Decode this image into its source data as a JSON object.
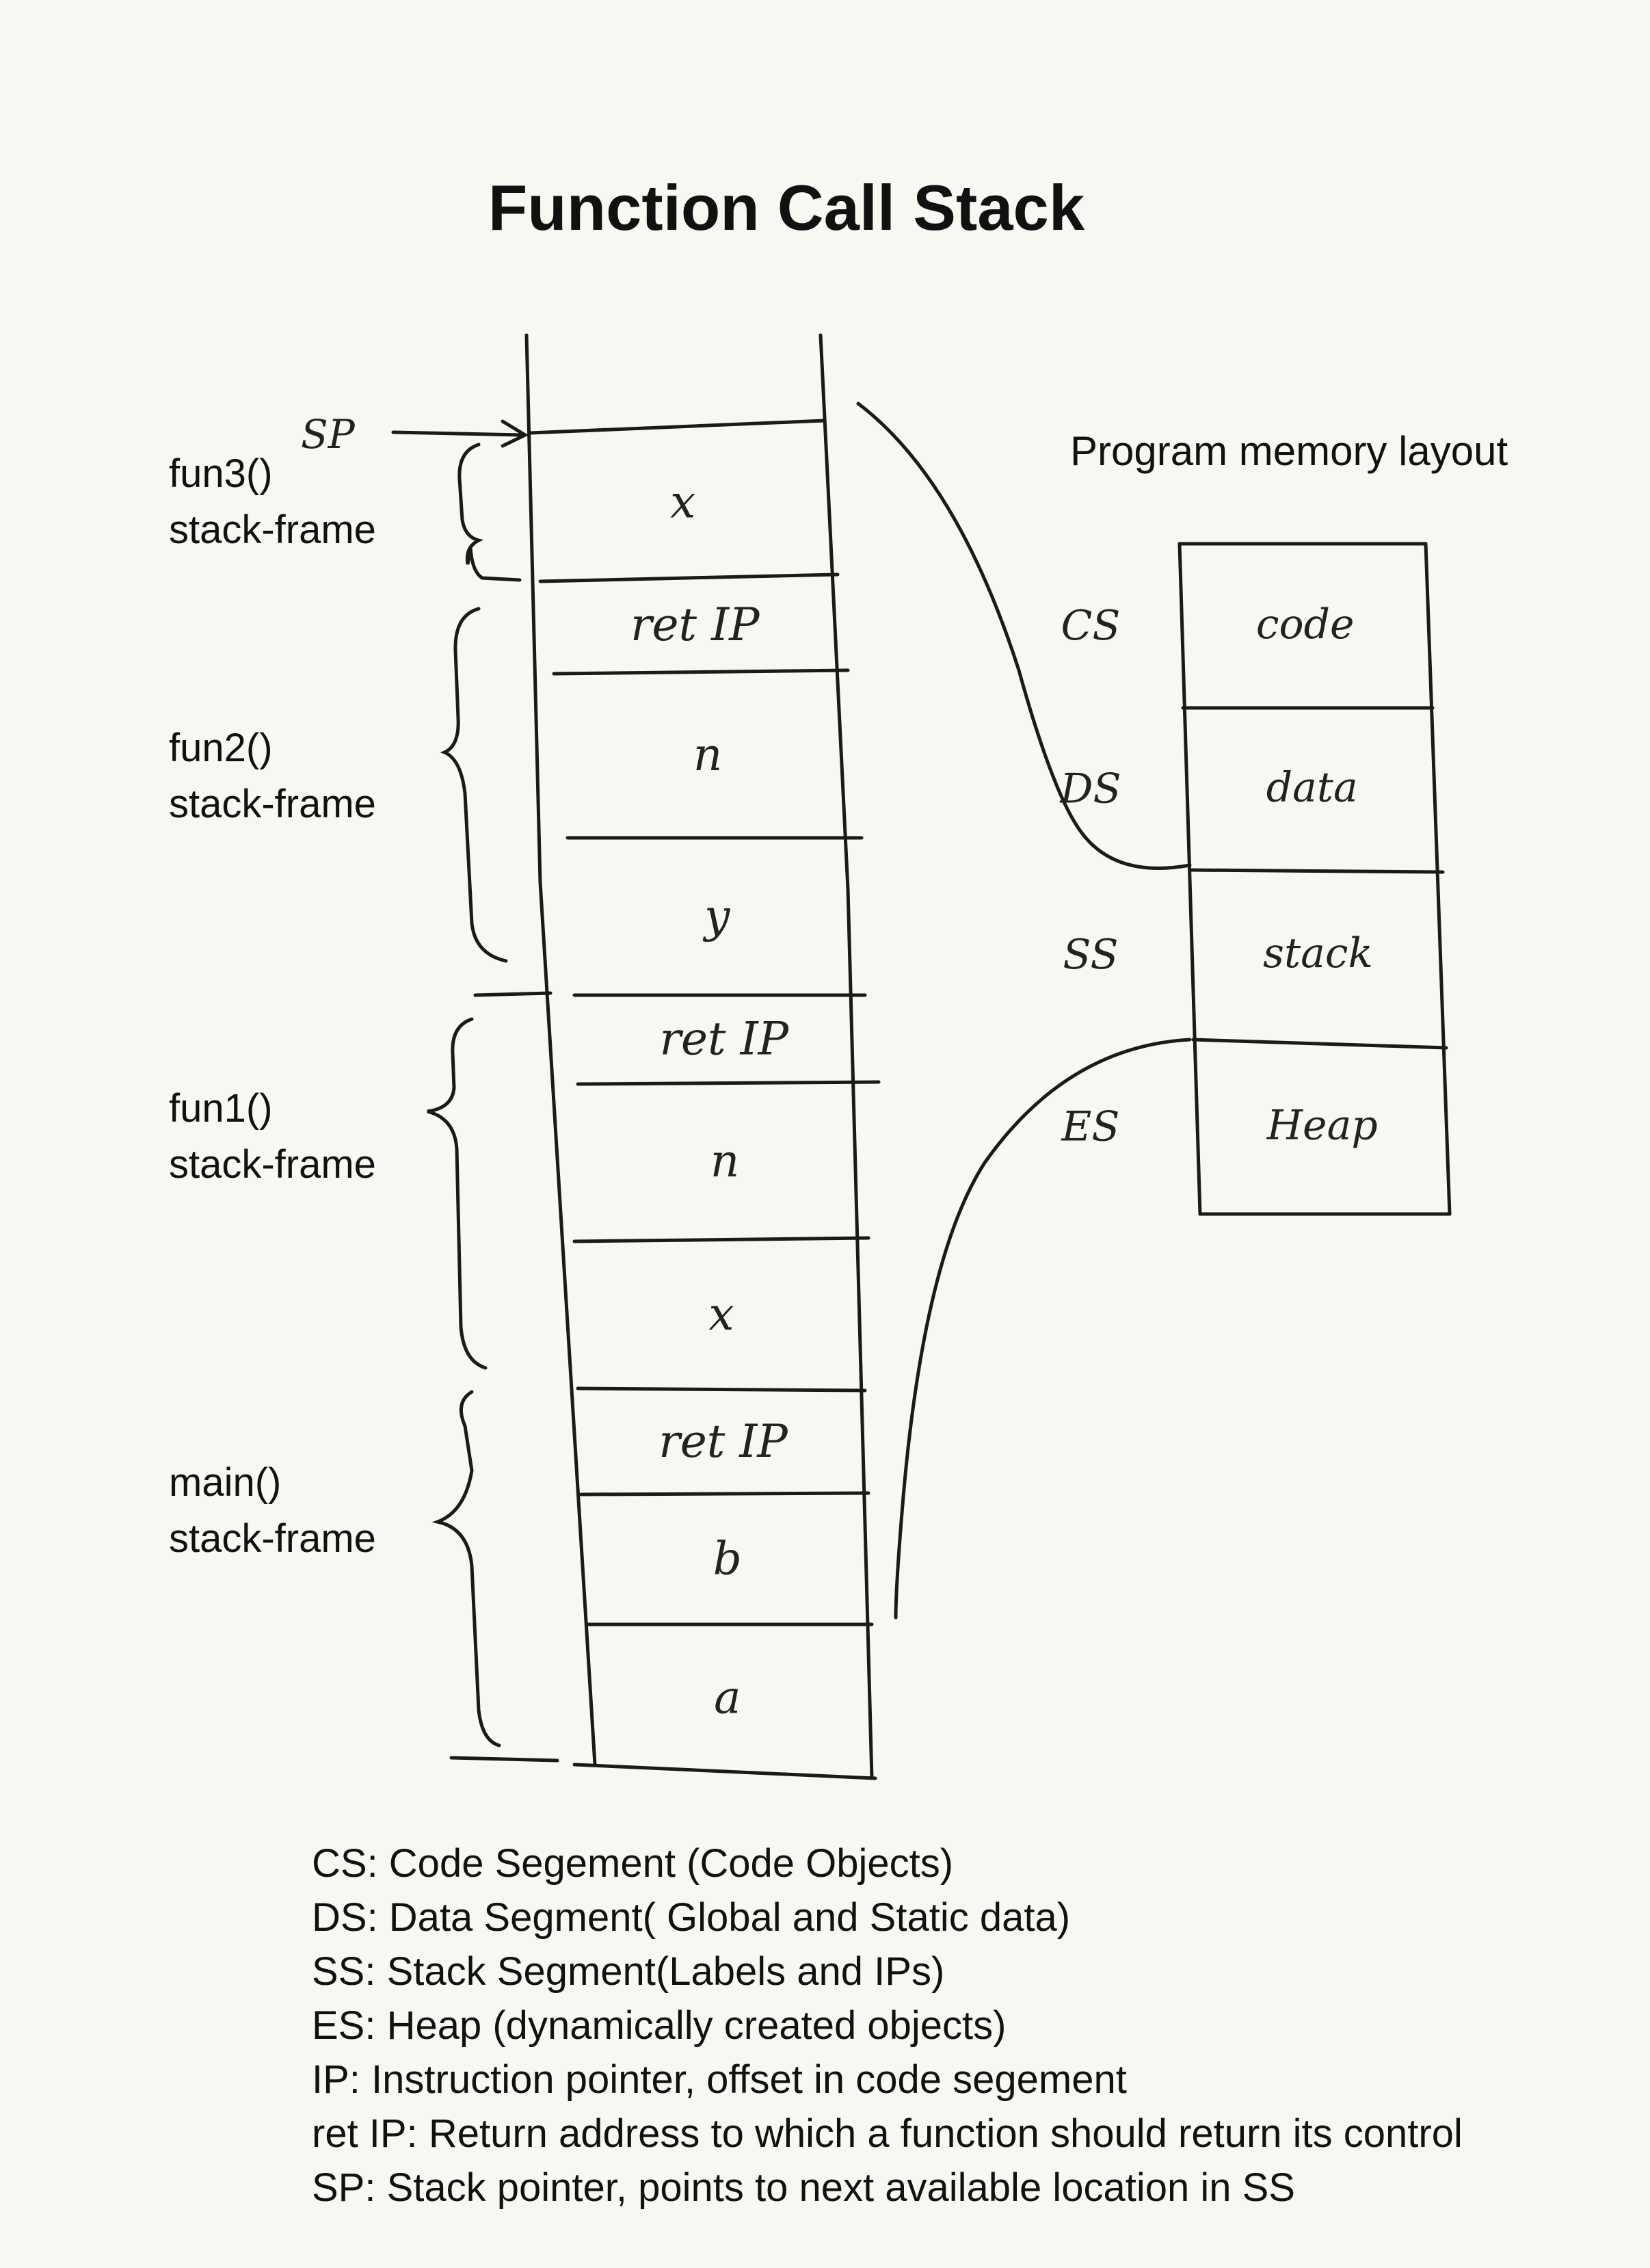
{
  "title": "Function Call Stack",
  "sp_label": "SP",
  "frames": [
    {
      "name": "fun3()",
      "sub": "stack-frame"
    },
    {
      "name": "fun2()",
      "sub": "stack-frame"
    },
    {
      "name": "fun1()",
      "sub": "stack-frame"
    },
    {
      "name": "main()",
      "sub": "stack-frame"
    }
  ],
  "stack_cells": [
    "x",
    "ret IP",
    "n",
    "y",
    "ret IP",
    "n",
    "x",
    "ret IP",
    "b",
    "a"
  ],
  "memory": {
    "title": "Program memory layout",
    "segments": [
      {
        "label": "CS",
        "content": "code"
      },
      {
        "label": "DS",
        "content": "data"
      },
      {
        "label": "SS",
        "content": "stack"
      },
      {
        "label": "ES",
        "content": "Heap"
      }
    ]
  },
  "legend": [
    "CS: Code Segement (Code Objects)",
    "DS: Data Segment( Global and Static data)",
    "SS: Stack Segment(Labels and IPs)",
    "ES:  Heap (dynamically created objects)",
    "IP: Instruction pointer, offset in code segement",
    "ret IP: Return address to which a function should return its control",
    "SP: Stack pointer, points to next available location in SS"
  ]
}
